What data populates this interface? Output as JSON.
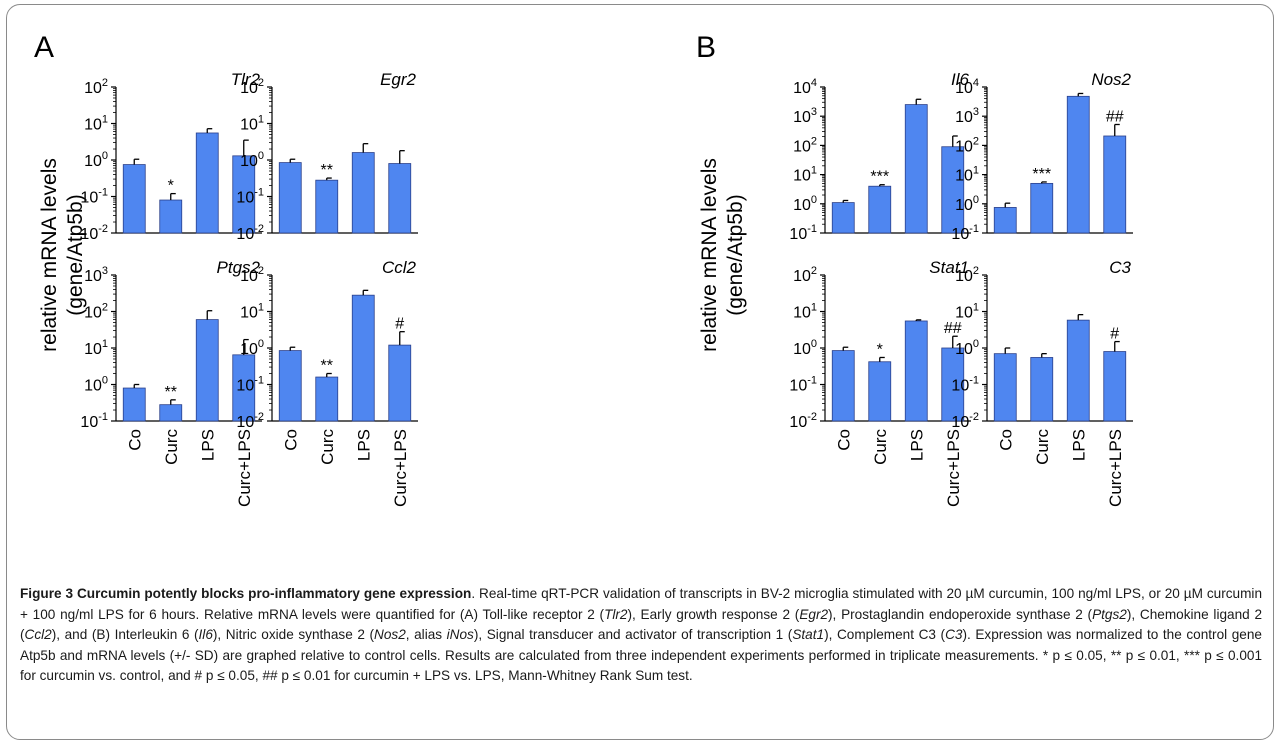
{
  "colors": {
    "bar": "#4f86f0",
    "bar_stroke": "#2a3f8a",
    "axis": "#000000"
  },
  "figure": {
    "ylabel_line1": "relative mRNA levels",
    "ylabel_line2": "(gene/Atp5b)",
    "panels": [
      {
        "letter": "A"
      },
      {
        "letter": "B"
      }
    ]
  },
  "chart_data": [
    {
      "type": "bar",
      "title": "Tlr2",
      "scale": "log",
      "categories": [
        "Co",
        "Curc",
        "LPS",
        "Curc+LPS"
      ],
      "values": [
        0.75,
        0.08,
        5.5,
        1.3
      ],
      "errors": [
        1.05,
        0.12,
        7.2,
        3.5
      ],
      "annotations": [
        "",
        "*",
        "",
        ""
      ],
      "ylim": [
        0.01,
        100
      ],
      "ylabel": "relative mRNA levels (gene/Atp5b)"
    },
    {
      "type": "bar",
      "title": "Egr2",
      "scale": "log",
      "categories": [
        "Co",
        "Curc",
        "LPS",
        "Curc+LPS"
      ],
      "values": [
        0.85,
        0.28,
        1.6,
        0.8
      ],
      "errors": [
        1.05,
        0.32,
        2.8,
        1.8
      ],
      "annotations": [
        "",
        "**",
        "",
        ""
      ],
      "ylim": [
        0.01,
        100
      ],
      "ylabel": "relative mRNA levels (gene/Atp5b)"
    },
    {
      "type": "bar",
      "title": "Ptgs2",
      "scale": "log",
      "categories": [
        "Co",
        "Curc",
        "LPS",
        "Curc+LPS"
      ],
      "values": [
        0.8,
        0.28,
        60,
        6.5
      ],
      "errors": [
        1.0,
        0.38,
        105,
        17
      ],
      "annotations": [
        "",
        "**",
        "",
        ""
      ],
      "ylim": [
        0.1,
        1000
      ],
      "ylabel": "relative mRNA levels (gene/Atp5b)"
    },
    {
      "type": "bar",
      "title": "Ccl2",
      "scale": "log",
      "categories": [
        "Co",
        "Curc",
        "LPS",
        "Curc+LPS"
      ],
      "values": [
        0.85,
        0.16,
        28,
        1.2
      ],
      "errors": [
        1.05,
        0.2,
        38,
        2.8
      ],
      "annotations": [
        "",
        "**",
        "",
        "#"
      ],
      "ylim": [
        0.01,
        100
      ],
      "ylabel": "relative mRNA levels (gene/Atp5b)"
    },
    {
      "type": "bar",
      "title": "Il6",
      "scale": "log",
      "categories": [
        "Co",
        "Curc",
        "LPS",
        "Curc+LPS"
      ],
      "values": [
        1.1,
        4,
        2500,
        90
      ],
      "errors": [
        1.3,
        4.5,
        3800,
        210
      ],
      "annotations": [
        "",
        "***",
        "",
        ""
      ],
      "ylim": [
        0.1,
        10000
      ],
      "ylabel": "relative mRNA levels (gene/Atp5b)"
    },
    {
      "type": "bar",
      "title": "Nos2",
      "scale": "log",
      "categories": [
        "Co",
        "Curc",
        "LPS",
        "Curc+LPS"
      ],
      "values": [
        0.75,
        5,
        4800,
        210
      ],
      "errors": [
        1.05,
        5.6,
        6000,
        520
      ],
      "annotations": [
        "",
        "***",
        "",
        "##"
      ],
      "ylim": [
        0.1,
        10000
      ],
      "ylabel": "relative mRNA levels (gene/Atp5b)"
    },
    {
      "type": "bar",
      "title": "Stat1",
      "scale": "log",
      "categories": [
        "Co",
        "Curc",
        "LPS",
        "Curc+LPS"
      ],
      "values": [
        0.85,
        0.42,
        5.5,
        1.0
      ],
      "errors": [
        1.05,
        0.55,
        5.9,
        2.1
      ],
      "annotations": [
        "",
        "*",
        "",
        "##"
      ],
      "ylim": [
        0.01,
        100
      ],
      "ylabel": "relative mRNA levels (gene/Atp5b)"
    },
    {
      "type": "bar",
      "title": "C3",
      "scale": "log",
      "categories": [
        "Co",
        "Curc",
        "LPS",
        "Curc+LPS"
      ],
      "values": [
        0.7,
        0.55,
        5.8,
        0.8
      ],
      "errors": [
        1.0,
        0.7,
        8.2,
        1.5
      ],
      "annotations": [
        "",
        "",
        "",
        "#"
      ],
      "ylim": [
        0.01,
        100
      ],
      "ylabel": "relative mRNA levels (gene/Atp5b)"
    }
  ],
  "caption": {
    "label": "Figure 3 Curcumin potently blocks pro-inflammatory gene expression",
    "body": [
      {
        "t": ". Real-time qRT-PCR validation of transcripts in BV-2 microglia stimulated with 20 µM curcumin, 100 ng/ml LPS, or 20 µM curcumin + 100 ng/ml LPS for 6 hours. Relative mRNA levels were quantified for (A) Toll-like receptor 2 ("
      },
      {
        "t": "Tlr2",
        "i": true
      },
      {
        "t": "), Early growth response 2 ("
      },
      {
        "t": "Egr2",
        "i": true
      },
      {
        "t": "), Prostaglandin endoperoxide synthase 2 ("
      },
      {
        "t": "Ptgs2",
        "i": true
      },
      {
        "t": "), Chemokine ligand 2 ("
      },
      {
        "t": "Ccl2",
        "i": true
      },
      {
        "t": "), and (B) Interleukin 6 ("
      },
      {
        "t": "Il6",
        "i": true
      },
      {
        "t": "), Nitric oxide synthase 2 ("
      },
      {
        "t": "Nos2",
        "i": true
      },
      {
        "t": ", alias "
      },
      {
        "t": "iNos",
        "i": true
      },
      {
        "t": "), Signal transducer and activator of transcription 1 ("
      },
      {
        "t": "Stat1",
        "i": true
      },
      {
        "t": "), Complement C3 ("
      },
      {
        "t": "C3",
        "i": true
      },
      {
        "t": "). Expression was normalized to the control gene Atp5b and mRNA levels (+/- SD) are graphed relative to control cells. Results are calculated from three independent experiments performed in triplicate measurements. * p ≤ 0.05, ** p ≤ 0.01, *** p ≤ 0.001 for curcumin vs. control, and # p ≤ 0.05, ## p ≤ 0.01 for curcumin + LPS vs. LPS, Mann-Whitney Rank Sum test."
      }
    ]
  }
}
